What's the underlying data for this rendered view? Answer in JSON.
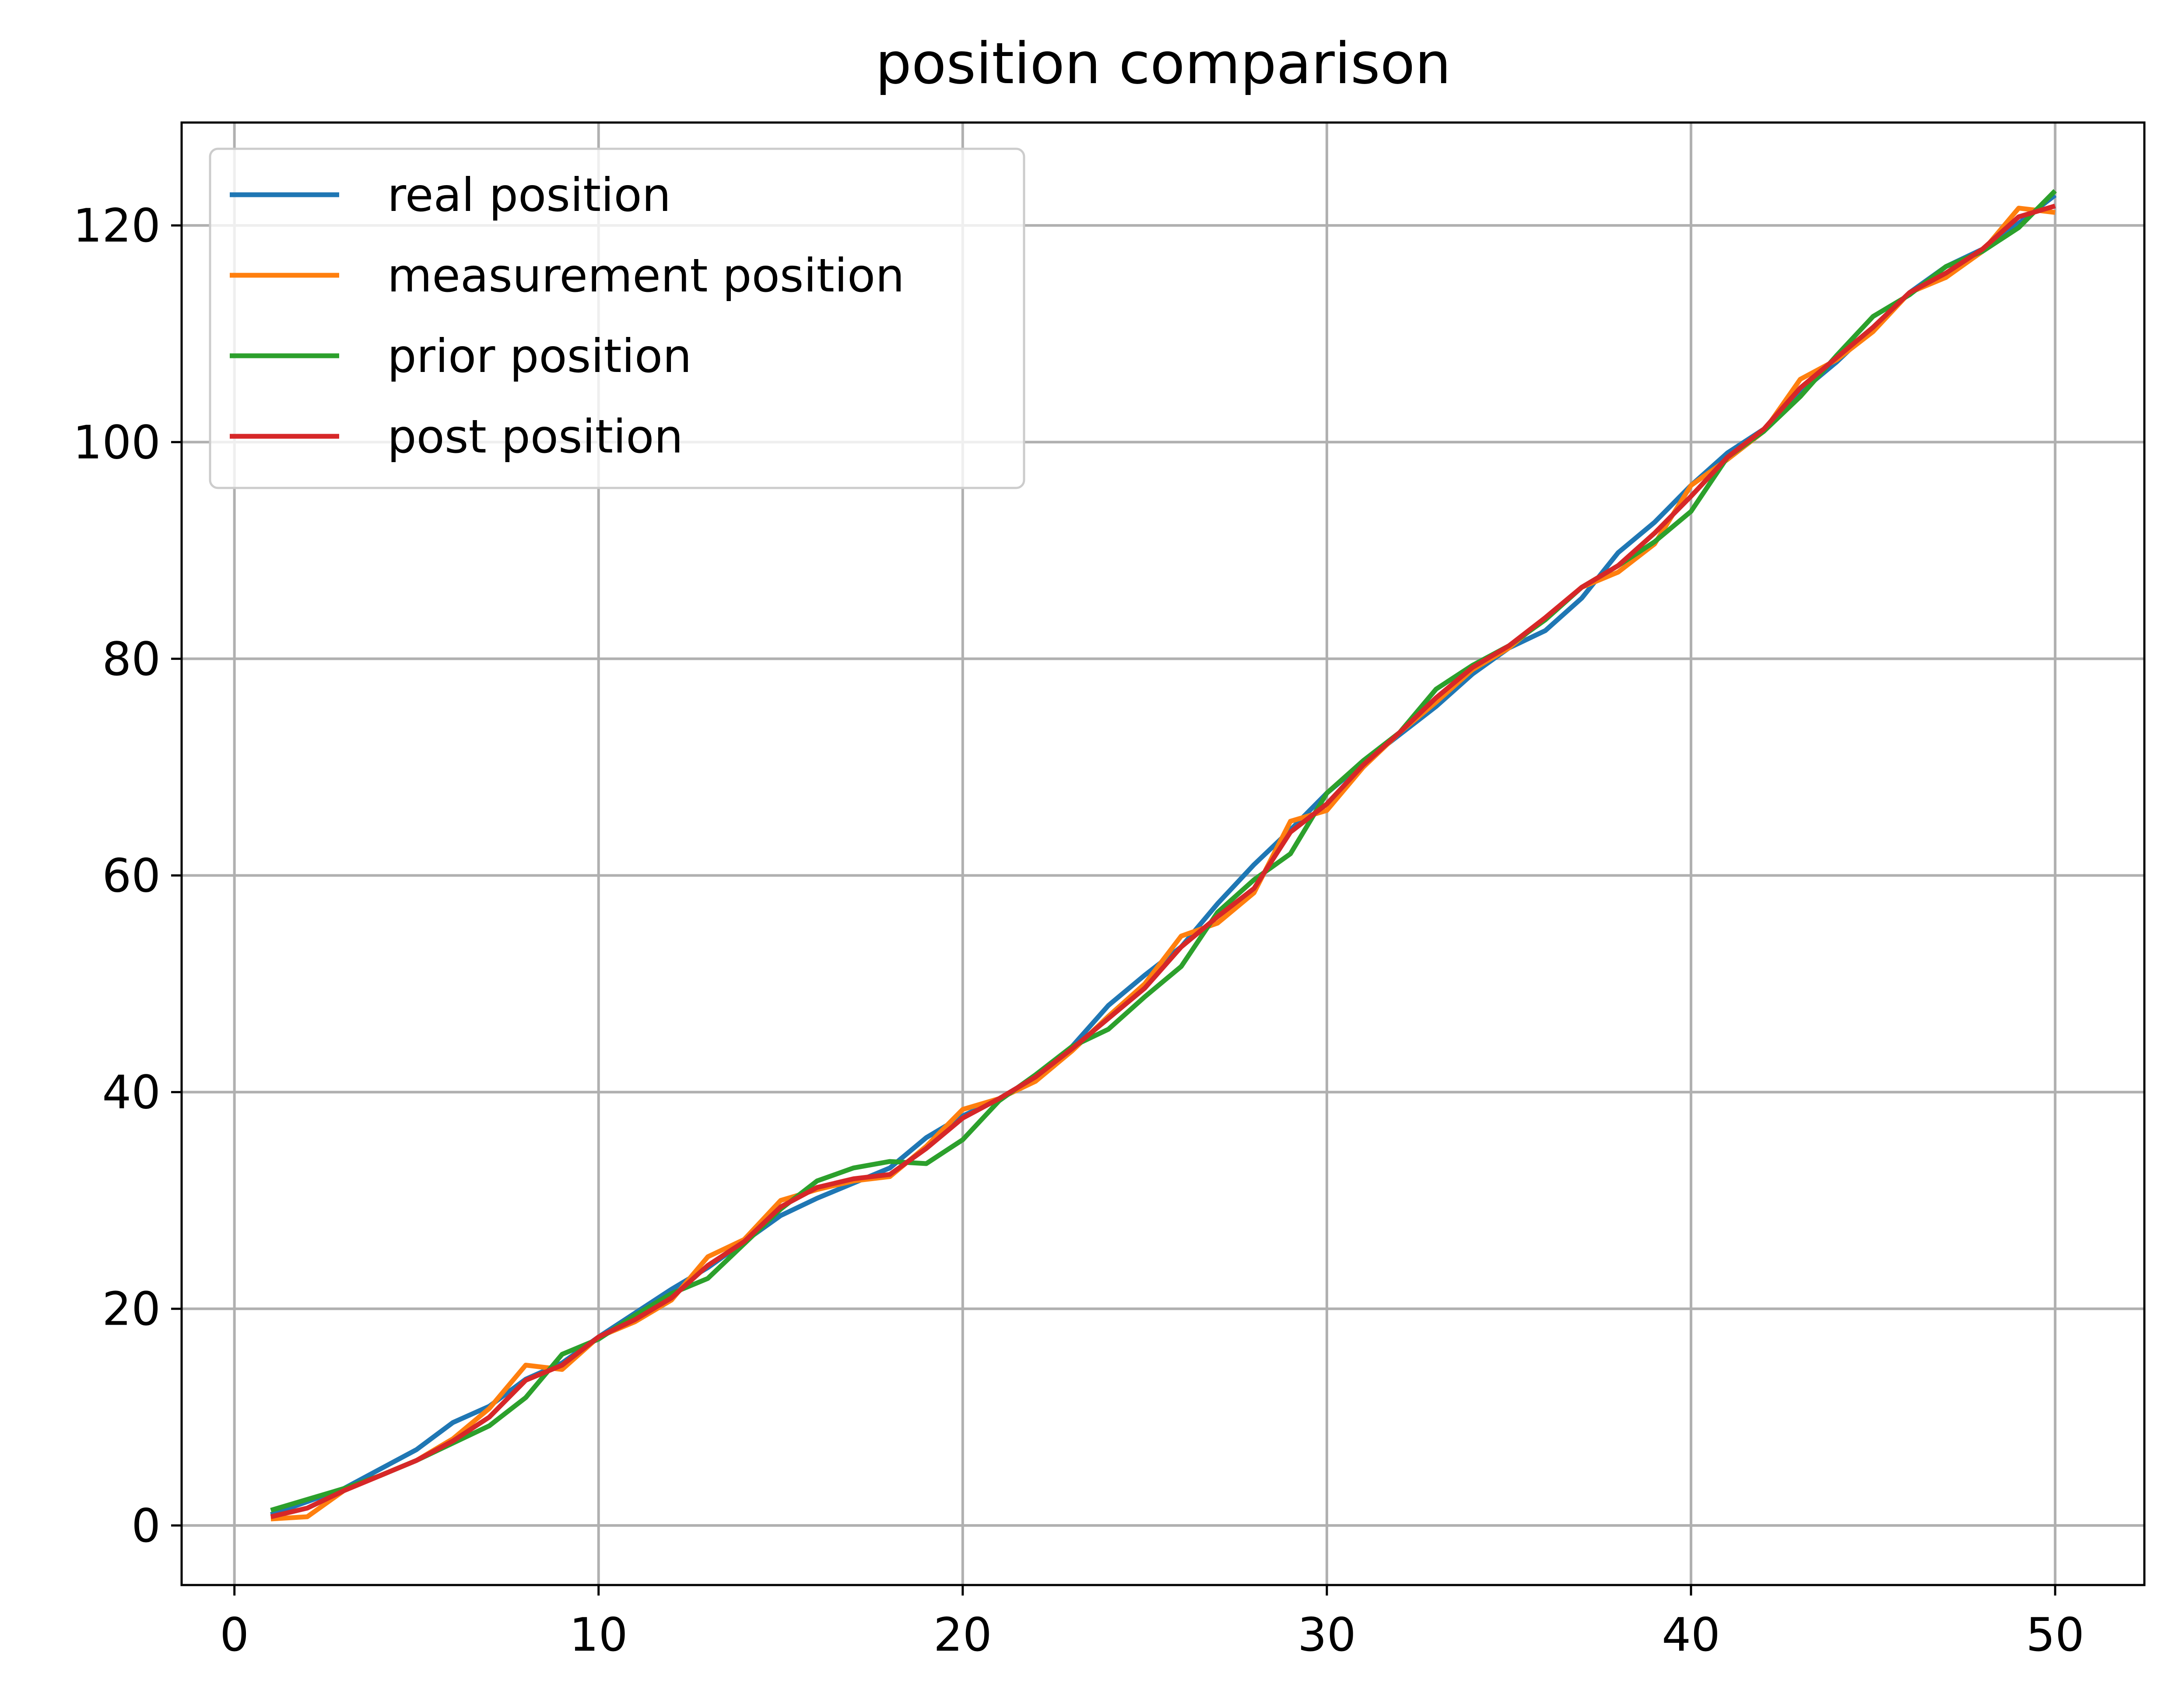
{
  "chart_data": {
    "type": "line",
    "title": "position comparison",
    "xlabel": "",
    "ylabel": "",
    "xlim": [
      -1.45,
      52.45
    ],
    "ylim": [
      -5.5,
      129.5
    ],
    "xticks": [
      0,
      10,
      20,
      30,
      40,
      50
    ],
    "yticks": [
      0,
      20,
      40,
      60,
      80,
      100,
      120
    ],
    "grid": true,
    "legend_position": "top-left",
    "x": [
      1,
      2,
      3,
      4,
      5,
      6,
      7,
      8,
      9,
      10,
      11,
      12,
      13,
      14,
      15,
      16,
      17,
      18,
      19,
      20,
      21,
      22,
      23,
      24,
      25,
      26,
      27,
      28,
      29,
      30,
      31,
      32,
      33,
      34,
      35,
      36,
      37,
      38,
      39,
      40,
      41,
      42,
      43,
      44,
      45,
      46,
      47,
      48,
      49,
      50
    ],
    "series": [
      {
        "name": "real position",
        "color": "#1f77b4",
        "values": [
          1.0,
          2.2,
          3.4,
          5.2,
          7.0,
          9.5,
          11.0,
          13.5,
          15.0,
          17.4,
          19.6,
          21.8,
          23.8,
          26.2,
          28.6,
          30.2,
          31.6,
          33.0,
          35.8,
          37.8,
          39.4,
          41.4,
          44.2,
          48.0,
          50.8,
          53.4,
          57.4,
          61.0,
          64.2,
          67.6,
          70.4,
          73.0,
          75.6,
          78.6,
          81.0,
          82.6,
          85.6,
          89.8,
          92.6,
          96.0,
          99.0,
          101.2,
          104.6,
          107.4,
          110.6,
          113.8,
          116.2,
          117.8,
          120.2,
          122.8
        ]
      },
      {
        "name": "measurement position",
        "color": "#ff7f0e",
        "values": [
          0.6,
          0.8,
          3.2,
          4.6,
          6.0,
          8.0,
          10.8,
          14.8,
          14.4,
          17.4,
          18.8,
          20.8,
          24.8,
          26.4,
          30.0,
          31.0,
          31.8,
          32.2,
          35.0,
          38.4,
          39.4,
          41.0,
          43.8,
          47.0,
          50.0,
          54.4,
          55.6,
          58.4,
          65.0,
          66.0,
          70.0,
          73.2,
          76.0,
          79.0,
          81.0,
          83.8,
          86.6,
          88.0,
          90.6,
          96.0,
          98.4,
          101.0,
          105.8,
          107.6,
          110.2,
          113.8,
          115.2,
          117.6,
          121.6,
          121.2
        ]
      },
      {
        "name": "prior position",
        "color": "#2ca02c",
        "values": [
          1.4,
          2.4,
          3.4,
          4.6,
          6.0,
          7.6,
          9.2,
          11.8,
          15.8,
          17.2,
          19.4,
          21.4,
          22.8,
          26.0,
          29.2,
          31.8,
          33.0,
          33.6,
          33.4,
          35.6,
          39.2,
          41.6,
          44.2,
          45.8,
          48.8,
          51.6,
          56.6,
          59.6,
          62.0,
          67.6,
          70.6,
          73.2,
          77.2,
          79.4,
          81.2,
          83.6,
          86.6,
          88.6,
          90.8,
          93.6,
          98.6,
          101.0,
          104.2,
          108.0,
          111.6,
          113.6,
          116.2,
          117.6,
          119.8,
          123.2
        ]
      },
      {
        "name": "post position",
        "color": "#d62728",
        "values": [
          0.8,
          1.6,
          3.2,
          4.6,
          6.0,
          7.8,
          10.0,
          13.4,
          14.8,
          17.4,
          19.0,
          21.0,
          24.0,
          26.2,
          29.4,
          31.2,
          32.0,
          32.4,
          34.8,
          37.6,
          39.4,
          41.4,
          44.0,
          46.8,
          49.6,
          53.4,
          56.2,
          58.8,
          64.0,
          66.6,
          70.2,
          73.2,
          76.4,
          79.2,
          81.2,
          83.8,
          86.6,
          88.6,
          91.6,
          95.0,
          98.6,
          101.2,
          105.0,
          107.8,
          110.6,
          113.8,
          115.6,
          117.8,
          120.8,
          121.8
        ]
      }
    ]
  }
}
